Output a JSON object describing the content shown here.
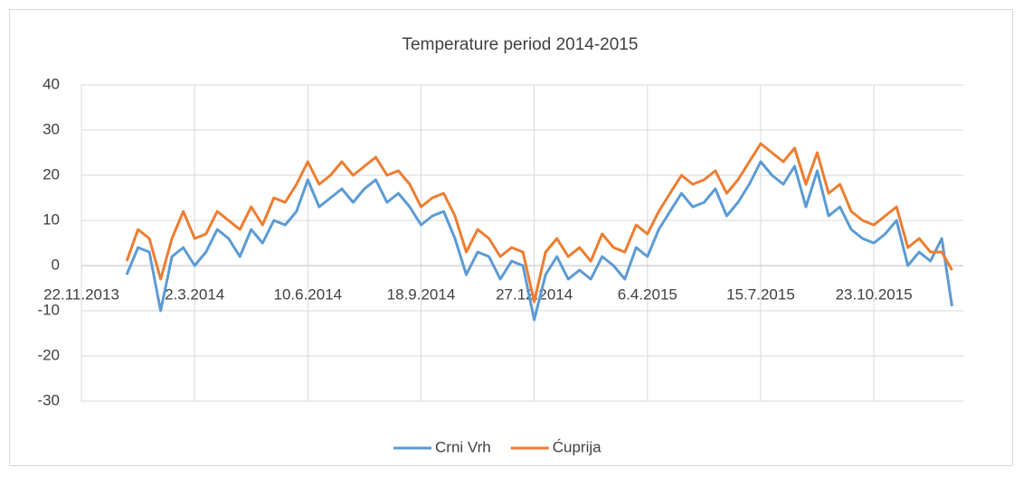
{
  "chart_data": {
    "type": "line",
    "title": "Temperature period 2014-2015",
    "x": [
      "1.1.2014",
      "11.1.2014",
      "21.1.2014",
      "31.1.2014",
      "10.2.2014",
      "20.2.2014",
      "2.3.2014",
      "12.3.2014",
      "22.3.2014",
      "1.4.2014",
      "11.4.2014",
      "21.4.2014",
      "1.5.2014",
      "11.5.2014",
      "21.5.2014",
      "31.5.2014",
      "10.6.2014",
      "20.6.2014",
      "30.6.2014",
      "10.7.2014",
      "20.7.2014",
      "30.7.2014",
      "9.8.2014",
      "19.8.2014",
      "29.8.2014",
      "8.9.2014",
      "18.9.2014",
      "28.9.2014",
      "8.10.2014",
      "18.10.2014",
      "28.10.2014",
      "7.11.2014",
      "17.11.2014",
      "27.11.2014",
      "7.12.2014",
      "17.12.2014",
      "27.12.2014",
      "6.1.2015",
      "16.1.2015",
      "26.1.2015",
      "5.2.2015",
      "15.2.2015",
      "25.2.2015",
      "7.3.2015",
      "17.3.2015",
      "27.3.2015",
      "6.4.2015",
      "16.4.2015",
      "26.4.2015",
      "6.5.2015",
      "16.5.2015",
      "26.5.2015",
      "5.6.2015",
      "15.6.2015",
      "25.6.2015",
      "5.7.2015",
      "15.7.2015",
      "25.7.2015",
      "4.8.2015",
      "14.8.2015",
      "24.8.2015",
      "3.9.2015",
      "13.9.2015",
      "23.9.2015",
      "3.10.2015",
      "13.10.2015",
      "23.10.2015",
      "2.11.2015",
      "12.11.2015",
      "22.11.2015",
      "2.12.2015",
      "12.12.2015",
      "22.12.2015",
      "31.12.2015"
    ],
    "series": [
      {
        "name": "Crni Vrh",
        "color": "#5b9bd5",
        "values": [
          -2,
          4,
          3,
          -10,
          2,
          4,
          0,
          3,
          8,
          6,
          2,
          8,
          5,
          10,
          9,
          12,
          19,
          13,
          15,
          17,
          14,
          17,
          19,
          14,
          16,
          13,
          9,
          11,
          12,
          6,
          -2,
          3,
          2,
          -3,
          1,
          0,
          -12,
          -2,
          2,
          -3,
          -1,
          -3,
          2,
          0,
          -3,
          4,
          2,
          8,
          12,
          16,
          13,
          14,
          17,
          11,
          14,
          18,
          23,
          20,
          18,
          22,
          13,
          21,
          11,
          13,
          8,
          6,
          5,
          7,
          10,
          0,
          3,
          1,
          6,
          -9
        ]
      },
      {
        "name": "Ćuprija",
        "color": "#ed7d31",
        "values": [
          1,
          8,
          6,
          -3,
          6,
          12,
          6,
          7,
          12,
          10,
          8,
          13,
          9,
          15,
          14,
          18,
          23,
          18,
          20,
          23,
          20,
          22,
          24,
          20,
          21,
          18,
          13,
          15,
          16,
          11,
          3,
          8,
          6,
          2,
          4,
          3,
          -8,
          3,
          6,
          2,
          4,
          1,
          7,
          4,
          3,
          9,
          7,
          12,
          16,
          20,
          18,
          19,
          21,
          16,
          19,
          23,
          27,
          25,
          23,
          26,
          18,
          25,
          16,
          18,
          12,
          10,
          9,
          11,
          13,
          4,
          6,
          3,
          3,
          -1
        ]
      }
    ],
    "xlim": [
      "22.11.2013",
      "10.1.2016"
    ],
    "xticks": [
      "22.11.2013",
      "2.3.2014",
      "10.6.2014",
      "18.9.2014",
      "27.12.2014",
      "6.4.2015",
      "15.7.2015",
      "23.10.2015"
    ],
    "ylim": [
      -30,
      40
    ],
    "yticks": [
      -30,
      -20,
      -10,
      0,
      10,
      20,
      30,
      40
    ],
    "grid": true,
    "legend": "bottom"
  }
}
